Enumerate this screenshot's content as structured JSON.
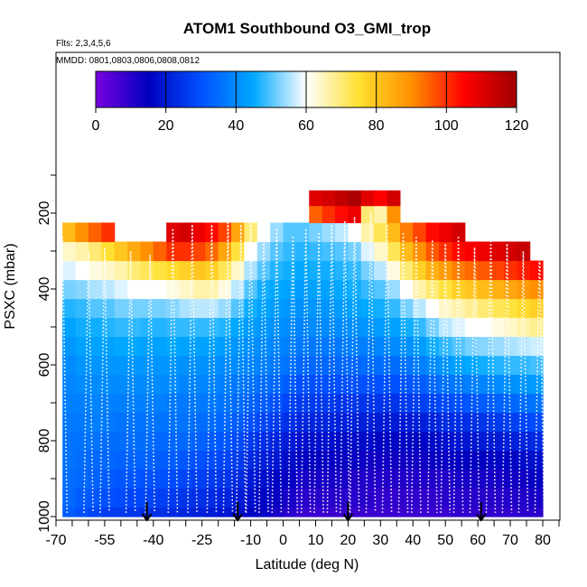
{
  "chart_data": {
    "type": "heatmap",
    "title": "ATOM1 Southbound O3_GMI_trop",
    "flights_note": "Flts: 2,3,4,5,6",
    "dates_note": "MMDD: 0801,0803,0806,0808,0812",
    "xlabel": "Latitude (deg N)",
    "ylabel": "PSXC (mbar)",
    "x_ticks": [
      -70,
      -55,
      -40,
      -25,
      -10,
      0,
      10,
      20,
      30,
      40,
      50,
      60,
      70,
      80
    ],
    "x_tick_labels": [
      "-70",
      "-55",
      "-40",
      "-25",
      "-10",
      "0",
      "10",
      "20",
      "30",
      "40",
      "50",
      "60",
      "70",
      "80"
    ],
    "y_ticks": [
      200,
      400,
      600,
      800,
      1000
    ],
    "y_tick_labels": [
      "200",
      "400",
      "600",
      "800",
      "1000"
    ],
    "y_range_top": 100,
    "y_range_bottom": 1000,
    "colorbar": {
      "min": 0,
      "max": 120,
      "ticks": [
        0,
        20,
        40,
        60,
        80,
        100,
        120
      ],
      "tick_labels": [
        "0",
        "20",
        "40",
        "60",
        "80",
        "100",
        "120"
      ],
      "colors": [
        "#7a00e0",
        "#0000c0",
        "#0050ff",
        "#00a8ff",
        "#ffffff",
        "#ffe030",
        "#ff9000",
        "#ff0000",
        "#a00000"
      ]
    },
    "pressure_levels": [
      1000,
      950,
      900,
      850,
      800,
      750,
      700,
      650,
      600,
      550,
      500,
      450,
      400,
      350,
      300,
      250,
      200,
      160
    ],
    "latitude_bins": [
      -68,
      -64,
      -60,
      -56,
      -52,
      -48,
      -44,
      -40,
      -36,
      -32,
      -28,
      -24,
      -20,
      -16,
      -12,
      -8,
      -4,
      0,
      4,
      8,
      12,
      16,
      20,
      24,
      28,
      32,
      36,
      40,
      44,
      48,
      52,
      56,
      60,
      64,
      68,
      72,
      76
    ],
    "o3_columns": [
      [
        32,
        34,
        35,
        36,
        36,
        37,
        38,
        39,
        40,
        42,
        44,
        47,
        52,
        58,
        64,
        82,
        null,
        null
      ],
      [
        30,
        32,
        34,
        35,
        36,
        37,
        38,
        40,
        42,
        44,
        46,
        48,
        53,
        60,
        66,
        90,
        null,
        null
      ],
      [
        28,
        31,
        33,
        34,
        36,
        38,
        39,
        40,
        42,
        44,
        46,
        50,
        55,
        62,
        70,
        95,
        null,
        null
      ],
      [
        26,
        30,
        32,
        34,
        35,
        37,
        38,
        40,
        42,
        44,
        47,
        50,
        56,
        64,
        75,
        100,
        null,
        null
      ],
      [
        26,
        29,
        31,
        33,
        35,
        36,
        38,
        40,
        42,
        45,
        48,
        52,
        58,
        66,
        80,
        null,
        null,
        null
      ],
      [
        25,
        28,
        31,
        33,
        35,
        36,
        38,
        40,
        42,
        45,
        48,
        52,
        60,
        70,
        85,
        null,
        null,
        null
      ],
      [
        24,
        28,
        30,
        33,
        35,
        36,
        38,
        40,
        42,
        44,
        47,
        52,
        60,
        72,
        90,
        null,
        null,
        null
      ],
      [
        24,
        27,
        30,
        32,
        34,
        36,
        38,
        40,
        42,
        44,
        47,
        52,
        60,
        74,
        95,
        null,
        null,
        null
      ],
      [
        23,
        26,
        29,
        32,
        34,
        36,
        37,
        40,
        42,
        45,
        48,
        53,
        62,
        76,
        100,
        110,
        null,
        null
      ],
      [
        22,
        25,
        28,
        31,
        34,
        36,
        37,
        39,
        41,
        44,
        48,
        55,
        64,
        78,
        100,
        112,
        null,
        null
      ],
      [
        21,
        24,
        27,
        30,
        33,
        35,
        37,
        39,
        41,
        44,
        48,
        56,
        66,
        80,
        98,
        108,
        null,
        null
      ],
      [
        20,
        23,
        26,
        29,
        32,
        35,
        37,
        39,
        41,
        44,
        48,
        56,
        66,
        78,
        94,
        104,
        null,
        null
      ],
      [
        19,
        22,
        25,
        28,
        31,
        34,
        36,
        38,
        40,
        43,
        47,
        54,
        62,
        72,
        86,
        98,
        null,
        null
      ],
      [
        18,
        20,
        23,
        26,
        29,
        32,
        35,
        37,
        40,
        42,
        45,
        50,
        56,
        64,
        74,
        86,
        null,
        null
      ],
      [
        16,
        18,
        20,
        23,
        26,
        30,
        33,
        36,
        39,
        41,
        43,
        46,
        50,
        55,
        60,
        70,
        null,
        null
      ],
      [
        14,
        16,
        18,
        21,
        24,
        28,
        32,
        35,
        38,
        40,
        42,
        44,
        46,
        50,
        54,
        60,
        null,
        null
      ],
      [
        12,
        14,
        16,
        19,
        22,
        26,
        30,
        34,
        37,
        39,
        41,
        43,
        45,
        47,
        50,
        54,
        null,
        null
      ],
      [
        10,
        12,
        14,
        17,
        20,
        24,
        28,
        32,
        36,
        38,
        40,
        42,
        44,
        46,
        48,
        50,
        null,
        null
      ],
      [
        8,
        10,
        12,
        15,
        18,
        22,
        26,
        30,
        34,
        37,
        39,
        41,
        43,
        45,
        47,
        50,
        null,
        null
      ],
      [
        8,
        10,
        12,
        15,
        18,
        22,
        26,
        30,
        34,
        37,
        40,
        42,
        44,
        46,
        48,
        52,
        95,
        110
      ],
      [
        8,
        10,
        12,
        14,
        18,
        22,
        26,
        30,
        34,
        37,
        40,
        42,
        44,
        46,
        49,
        54,
        100,
        112
      ],
      [
        8,
        10,
        12,
        14,
        17,
        21,
        25,
        30,
        34,
        37,
        40,
        43,
        45,
        47,
        50,
        56,
        104,
        115
      ],
      [
        8,
        10,
        11,
        14,
        17,
        21,
        25,
        30,
        34,
        38,
        41,
        44,
        46,
        48,
        52,
        60,
        108,
        118
      ],
      [
        8,
        10,
        11,
        13,
        17,
        21,
        25,
        30,
        35,
        38,
        42,
        45,
        48,
        52,
        58,
        66,
        70,
        110
      ],
      [
        8,
        9,
        11,
        13,
        16,
        20,
        25,
        30,
        35,
        39,
        43,
        46,
        50,
        56,
        64,
        72,
        66,
        105
      ],
      [
        8,
        9,
        11,
        13,
        16,
        20,
        25,
        30,
        35,
        40,
        44,
        48,
        54,
        62,
        72,
        82,
        90,
        112
      ],
      [
        8,
        9,
        11,
        13,
        16,
        20,
        26,
        31,
        36,
        41,
        46,
        52,
        60,
        70,
        82,
        92,
        null,
        null
      ],
      [
        8,
        9,
        11,
        13,
        16,
        21,
        27,
        32,
        38,
        43,
        48,
        56,
        66,
        78,
        90,
        98,
        null,
        null
      ],
      [
        8,
        9,
        11,
        14,
        17,
        22,
        28,
        34,
        40,
        46,
        52,
        60,
        70,
        84,
        96,
        104,
        null,
        null
      ],
      [
        8,
        10,
        11,
        14,
        18,
        23,
        29,
        36,
        42,
        48,
        56,
        64,
        74,
        88,
        100,
        108,
        null,
        null
      ],
      [
        9,
        10,
        12,
        15,
        19,
        24,
        30,
        37,
        44,
        50,
        58,
        66,
        78,
        92,
        104,
        112,
        null,
        null
      ],
      [
        9,
        10,
        12,
        15,
        19,
        24,
        31,
        38,
        45,
        52,
        60,
        68,
        80,
        94,
        106,
        null,
        null,
        null
      ],
      [
        9,
        10,
        12,
        15,
        20,
        25,
        32,
        39,
        46,
        53,
        60,
        70,
        82,
        96,
        108,
        null,
        null,
        null
      ],
      [
        9,
        10,
        12,
        16,
        20,
        26,
        33,
        40,
        47,
        54,
        62,
        72,
        84,
        98,
        110,
        null,
        null,
        null
      ],
      [
        9,
        11,
        13,
        16,
        21,
        27,
        34,
        41,
        48,
        55,
        64,
        74,
        86,
        100,
        112,
        null,
        null,
        null
      ],
      [
        10,
        11,
        13,
        17,
        22,
        28,
        35,
        42,
        48,
        56,
        66,
        76,
        88,
        102,
        114,
        null,
        null,
        null
      ],
      [
        10,
        12,
        14,
        18,
        23,
        29,
        36,
        43,
        49,
        57,
        68,
        78,
        90,
        104,
        null,
        null,
        null,
        null
      ]
    ],
    "profile_latitudes": [
      -68,
      -60,
      -55,
      -47,
      -41,
      -34,
      -28,
      -22,
      -17,
      -13,
      -10,
      -6,
      -2,
      3,
      7,
      11,
      15,
      19,
      22,
      27,
      32,
      37,
      41,
      46,
      50,
      54,
      59,
      64,
      69,
      74,
      79
    ],
    "profile_min_pressure": [
      260,
      300,
      290,
      300,
      310,
      240,
      230,
      230,
      220,
      230,
      220,
      230,
      240,
      260,
      240,
      250,
      230,
      220,
      210,
      195,
      230,
      250,
      260,
      270,
      280,
      260,
      290,
      260,
      280,
      300,
      280
    ],
    "marker_latitudes": [
      -42,
      -14,
      20,
      61
    ]
  }
}
